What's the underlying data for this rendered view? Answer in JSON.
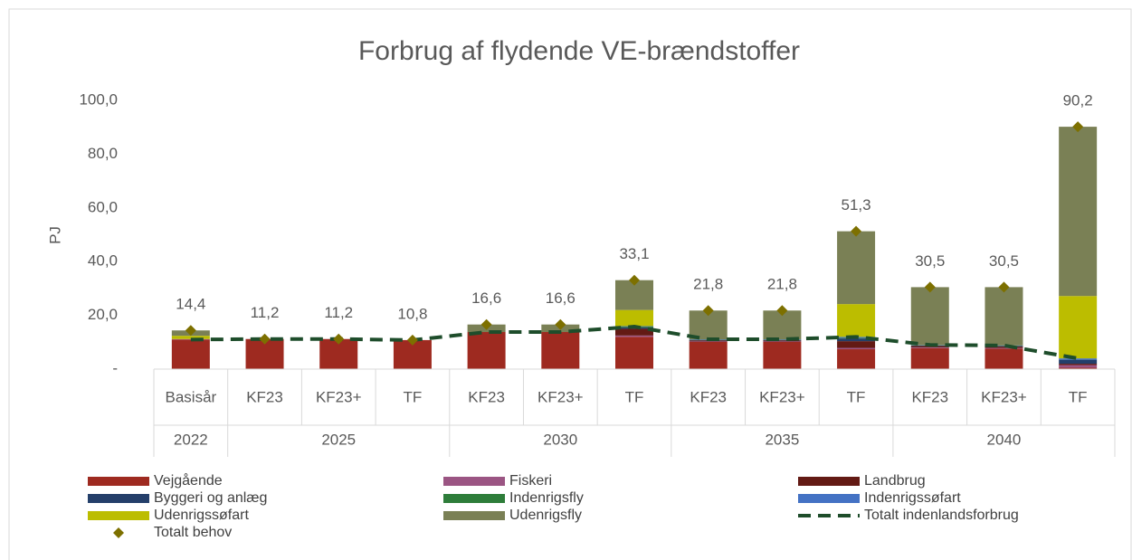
{
  "chart_data": {
    "type": "bar",
    "stacked": true,
    "title": "Forbrug af flydende VE-brændstoffer",
    "y_label": "PJ",
    "categories": [
      "Basisår",
      "KF23",
      "KF23+",
      "TF",
      "KF23",
      "KF23+",
      "TF",
      "KF23",
      "KF23+",
      "TF",
      "KF23",
      "KF23+",
      "TF"
    ],
    "groups": [
      {
        "label": "2022",
        "count": 1
      },
      {
        "label": "2025",
        "count": 3
      },
      {
        "label": "2030",
        "count": 3
      },
      {
        "label": "2035",
        "count": 3
      },
      {
        "label": "2040",
        "count": 3
      }
    ],
    "ylim": [
      0,
      100
    ],
    "yticks": [
      {
        "value": 0,
        "label": "-"
      },
      {
        "value": 20,
        "label": "20,0"
      },
      {
        "value": 40,
        "label": "40,0"
      },
      {
        "value": 60,
        "label": "60,0"
      },
      {
        "value": 80,
        "label": "80,0"
      },
      {
        "value": 100,
        "label": "100,0"
      }
    ],
    "series": [
      {
        "name": "Vejgående",
        "type": "bar",
        "color": "#9e2a20",
        "values": [
          11.0,
          11.2,
          11.2,
          10.8,
          13.8,
          13.8,
          12.0,
          10.1,
          10.1,
          7.4,
          7.8,
          7.6,
          0.5
        ]
      },
      {
        "name": "Fiskeri",
        "type": "bar",
        "color": "#9b5583",
        "values": [
          0.2,
          0,
          0,
          0,
          0,
          0,
          0.5,
          0.2,
          0.2,
          0.5,
          0.3,
          0.3,
          1.0
        ]
      },
      {
        "name": "Landbrug",
        "type": "bar",
        "color": "#631a14",
        "values": [
          0,
          0,
          0,
          0,
          0,
          0,
          2.5,
          0.4,
          0.4,
          2.5,
          0.5,
          0.5,
          0.5
        ]
      },
      {
        "name": "Byggeri og anlæg",
        "type": "bar",
        "color": "#243f6a",
        "values": [
          0,
          0,
          0,
          0,
          0,
          0,
          0.5,
          0.2,
          0.2,
          1.0,
          0.2,
          0.2,
          1.5
        ]
      },
      {
        "name": "Indenrigsfly",
        "type": "bar",
        "color": "#2e7d3a",
        "values": [
          0,
          0,
          0,
          0,
          0,
          0,
          0.3,
          0.1,
          0.1,
          0.2,
          0.1,
          0.1,
          0
        ]
      },
      {
        "name": "Indenrigssøfart",
        "type": "bar",
        "color": "#4472c4",
        "values": [
          0,
          0,
          0,
          0,
          0,
          0,
          0.2,
          0.1,
          0.1,
          0.4,
          0.1,
          0.1,
          0.5
        ]
      },
      {
        "name": "Udenrigssøfart",
        "type": "bar",
        "color": "#bcbd00",
        "values": [
          1.2,
          0,
          0,
          0,
          0,
          0,
          6.0,
          0,
          0,
          12.2,
          0,
          0,
          23.2
        ]
      },
      {
        "name": "Udenrigsfly",
        "type": "bar",
        "color": "#7a8055",
        "values": [
          2.0,
          0,
          0,
          0,
          2.8,
          2.8,
          11.1,
          10.7,
          10.7,
          27.1,
          21.5,
          21.7,
          63.0
        ]
      },
      {
        "name": "Totalt indenlandsforbrug",
        "type": "line",
        "dashed": true,
        "color": "#1e4d2b",
        "values": [
          11.0,
          11.2,
          11.2,
          10.8,
          13.8,
          13.8,
          15.8,
          11.1,
          11.1,
          12.0,
          9.0,
          8.8,
          4.0
        ]
      },
      {
        "name": "Totalt behov",
        "type": "scatter",
        "marker": "diamond",
        "color": "#7d7000",
        "values": [
          14.4,
          11.2,
          11.2,
          10.8,
          16.6,
          16.6,
          33.1,
          21.8,
          21.8,
          51.3,
          30.5,
          30.5,
          90.2
        ],
        "value_labels": [
          "14,4",
          "11,2",
          "11,2",
          "10,8",
          "16,6",
          "16,6",
          "33,1",
          "21,8",
          "21,8",
          "51,3",
          "30,5",
          "30,5",
          "90,2"
        ]
      }
    ],
    "legend": "bottom"
  }
}
